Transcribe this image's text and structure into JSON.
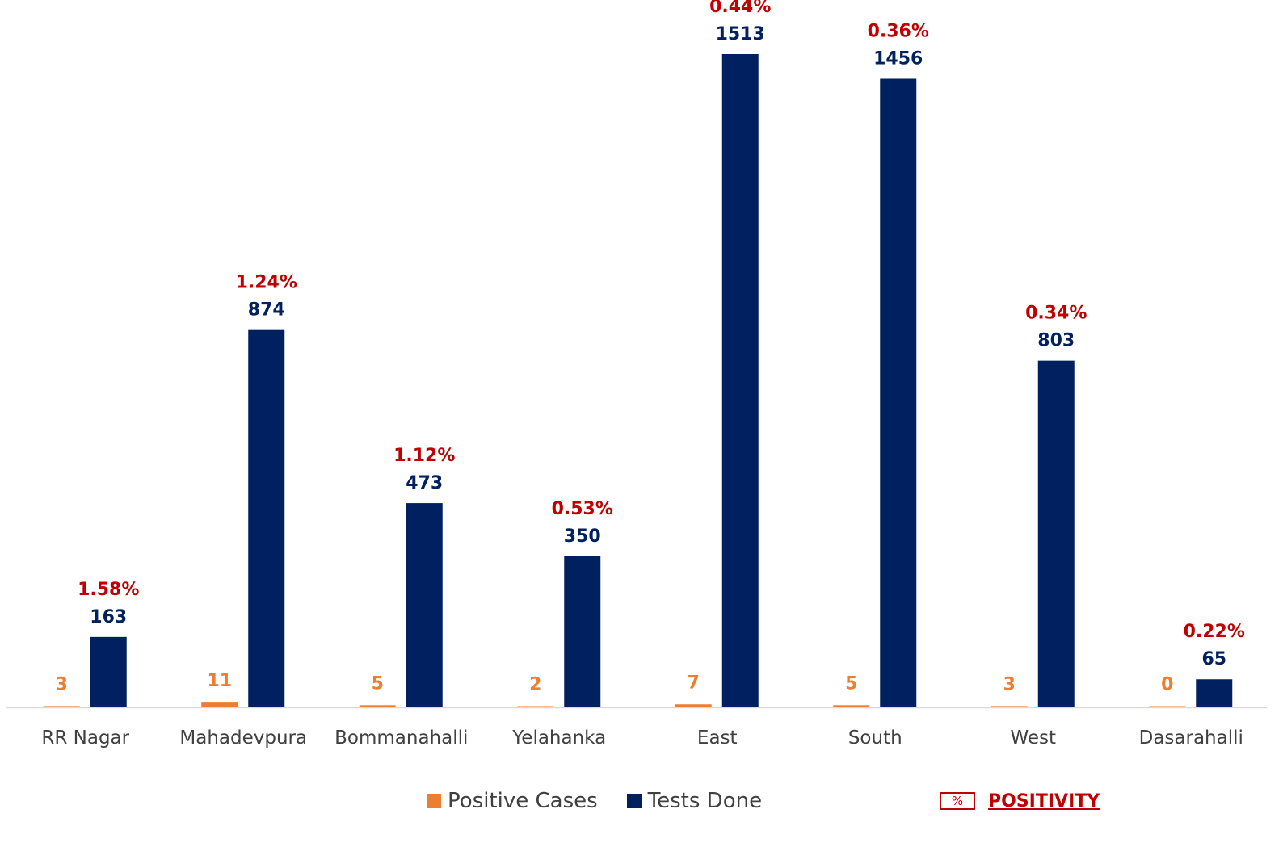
{
  "colors": {
    "positive": "#ed7d31",
    "tests": "#002060",
    "positivity": "#c00000",
    "axis": "#d9d9d9",
    "label": "#404040"
  },
  "chart_data": {
    "type": "bar",
    "categories": [
      "RR Nagar",
      "Mahadevpura",
      "Bommanahalli",
      "Yelahanka",
      "East",
      "South",
      "West",
      "Dasarahalli"
    ],
    "series": [
      {
        "name": "Positive Cases",
        "values": [
          3,
          11,
          5,
          2,
          7,
          5,
          3,
          0
        ]
      },
      {
        "name": "Tests Done",
        "values": [
          163,
          874,
          473,
          350,
          1513,
          1456,
          803,
          65
        ]
      }
    ],
    "positivity": [
      "1.58%",
      "1.24%",
      "1.12%",
      "0.53%",
      "0.44%",
      "0.36%",
      "0.34%",
      "0.22%"
    ],
    "ylim": [
      0,
      1513
    ],
    "grid": false,
    "legend_position": "bottom"
  },
  "legend": {
    "positive_label": "Positive Cases",
    "tests_label": "Tests Done",
    "positivity_symbol": "%",
    "positivity_label": "POSITIVITY"
  }
}
